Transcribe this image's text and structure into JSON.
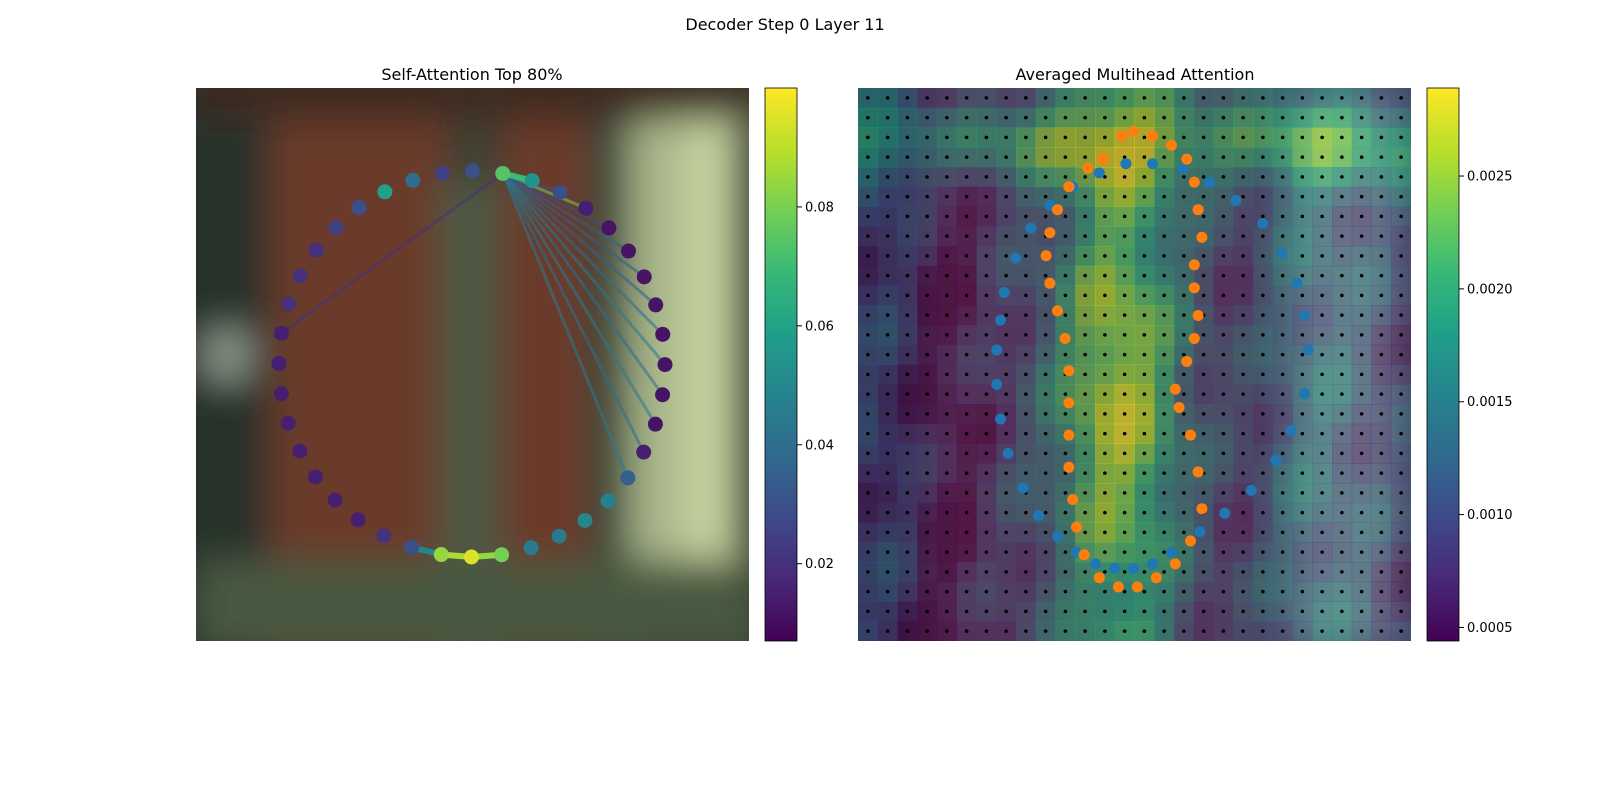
{
  "figure": {
    "suptitle": "Decoder Step 0 Layer 11"
  },
  "colors": {
    "viridis": [
      "#440154",
      "#482878",
      "#3e4989",
      "#31688e",
      "#26828e",
      "#1f9e89",
      "#35b779",
      "#6ece58",
      "#b5de2b",
      "#fde725"
    ],
    "mean_point": "#1f77b4",
    "pred_point": "#ff7f0e",
    "grid_dot": "#000000"
  },
  "chart_data": [
    {
      "type": "scatter",
      "title": "Self-Attention Top 80%",
      "description_kind": "ring of 40 attention-colored points over image with links from query point",
      "n_points": 40,
      "ring_center": [
        0,
        0
      ],
      "ring_radius": 1,
      "query_index": 0,
      "point_attention": [
        0.075,
        0.055,
        0.03,
        0.015,
        0.012,
        0.012,
        0.012,
        0.012,
        0.012,
        0.012,
        0.012,
        0.012,
        0.015,
        0.035,
        0.048,
        0.05,
        0.045,
        0.045,
        0.08,
        0.095,
        0.085,
        0.03,
        0.02,
        0.015,
        0.015,
        0.015,
        0.015,
        0.015,
        0.015,
        0.015,
        0.015,
        0.02,
        0.02,
        0.02,
        0.025,
        0.03,
        0.06,
        0.04,
        0.025,
        0.03
      ],
      "links_from_query": [
        {
          "to": 1,
          "weight": 0.06
        },
        {
          "to": 2,
          "weight": 0.03
        },
        {
          "to": 3,
          "weight": 0.08
        },
        {
          "to": 4,
          "weight": 0.03
        },
        {
          "to": 5,
          "weight": 0.035
        },
        {
          "to": 6,
          "weight": 0.035
        },
        {
          "to": 7,
          "weight": 0.035
        },
        {
          "to": 8,
          "weight": 0.04
        },
        {
          "to": 9,
          "weight": 0.045
        },
        {
          "to": 10,
          "weight": 0.04
        },
        {
          "to": 11,
          "weight": 0.045
        },
        {
          "to": 12,
          "weight": 0.04
        },
        {
          "to": 13,
          "weight": 0.045
        },
        {
          "to": 30,
          "weight": 0.02
        }
      ],
      "strong_links": [
        {
          "from": 18,
          "to": 19,
          "weight": 0.085
        },
        {
          "from": 19,
          "to": 20,
          "weight": 0.088
        },
        {
          "from": 20,
          "to": 21,
          "weight": 0.05
        },
        {
          "from": 0,
          "to": 1,
          "weight": 0.07
        }
      ],
      "colorbar": {
        "min": 0.007,
        "max": 0.1,
        "ticks": [
          0.02,
          0.04,
          0.06,
          0.08
        ],
        "tick_labels": [
          "0.02",
          "0.04",
          "0.06",
          "0.08"
        ]
      }
    },
    {
      "type": "heatmap",
      "title": "Averaged Multihead Attention",
      "grid_size": 28,
      "colorbar": {
        "min": 0.00044,
        "max": 0.00289,
        "ticks": [
          0.0005,
          0.001,
          0.0015,
          0.002,
          0.0025
        ],
        "tick_labels": [
          "0.0005",
          "0.0010",
          "0.0015",
          "0.0020",
          "0.0025"
        ]
      },
      "blue_points": [
        [
          -0.62,
          0.15
        ],
        [
          -0.62,
          0.0
        ],
        [
          -0.6,
          -0.15
        ],
        [
          -0.56,
          -0.3
        ],
        [
          -0.48,
          -0.45
        ],
        [
          -0.4,
          -0.57
        ],
        [
          -0.3,
          -0.66
        ],
        [
          -0.2,
          -0.73
        ],
        [
          -0.1,
          -0.78
        ],
        [
          0.0,
          -0.8
        ],
        [
          0.1,
          -0.8
        ],
        [
          0.2,
          -0.78
        ],
        [
          0.3,
          -0.73
        ],
        [
          0.45,
          -0.64
        ],
        [
          0.58,
          -0.56
        ],
        [
          0.72,
          -0.46
        ],
        [
          0.85,
          -0.33
        ],
        [
          0.93,
          -0.2
        ],
        [
          1.0,
          -0.04
        ],
        [
          1.02,
          0.15
        ],
        [
          1.0,
          0.3
        ],
        [
          0.96,
          0.44
        ],
        [
          0.88,
          0.57
        ],
        [
          0.78,
          0.7
        ],
        [
          0.64,
          0.8
        ],
        [
          0.5,
          0.88
        ],
        [
          0.36,
          0.94
        ],
        [
          0.2,
          0.96
        ],
        [
          0.06,
          0.96
        ],
        [
          -0.08,
          0.92
        ],
        [
          -0.22,
          0.86
        ],
        [
          -0.34,
          0.78
        ],
        [
          -0.44,
          0.68
        ],
        [
          -0.52,
          0.55
        ],
        [
          -0.58,
          0.4
        ],
        [
          -0.6,
          0.28
        ]
      ],
      "orange_points": [
        [
          -0.06,
          0.98
        ],
        [
          0.04,
          1.08
        ],
        [
          0.1,
          1.1
        ],
        [
          0.2,
          1.08
        ],
        [
          0.3,
          1.04
        ],
        [
          0.38,
          0.98
        ],
        [
          0.42,
          0.88
        ],
        [
          0.44,
          0.76
        ],
        [
          0.46,
          0.64
        ],
        [
          0.42,
          0.52
        ],
        [
          0.42,
          0.42
        ],
        [
          0.44,
          0.3
        ],
        [
          0.42,
          0.2
        ],
        [
          0.38,
          0.1
        ],
        [
          0.32,
          -0.02
        ],
        [
          0.34,
          -0.1
        ],
        [
          0.4,
          -0.22
        ],
        [
          0.44,
          -0.38
        ],
        [
          0.46,
          -0.54
        ],
        [
          0.4,
          -0.68
        ],
        [
          0.32,
          -0.78
        ],
        [
          0.22,
          -0.84
        ],
        [
          0.12,
          -0.88
        ],
        [
          0.02,
          -0.88
        ],
        [
          -0.08,
          -0.84
        ],
        [
          -0.16,
          -0.74
        ],
        [
          -0.2,
          -0.62
        ],
        [
          -0.22,
          -0.5
        ],
        [
          -0.24,
          -0.36
        ],
        [
          -0.24,
          -0.22
        ],
        [
          -0.24,
          -0.08
        ],
        [
          -0.24,
          0.06
        ],
        [
          -0.26,
          0.2
        ],
        [
          -0.3,
          0.32
        ],
        [
          -0.34,
          0.44
        ],
        [
          -0.36,
          0.56
        ],
        [
          -0.34,
          0.66
        ],
        [
          -0.3,
          0.76
        ],
        [
          -0.24,
          0.86
        ],
        [
          -0.14,
          0.94
        ]
      ]
    }
  ]
}
